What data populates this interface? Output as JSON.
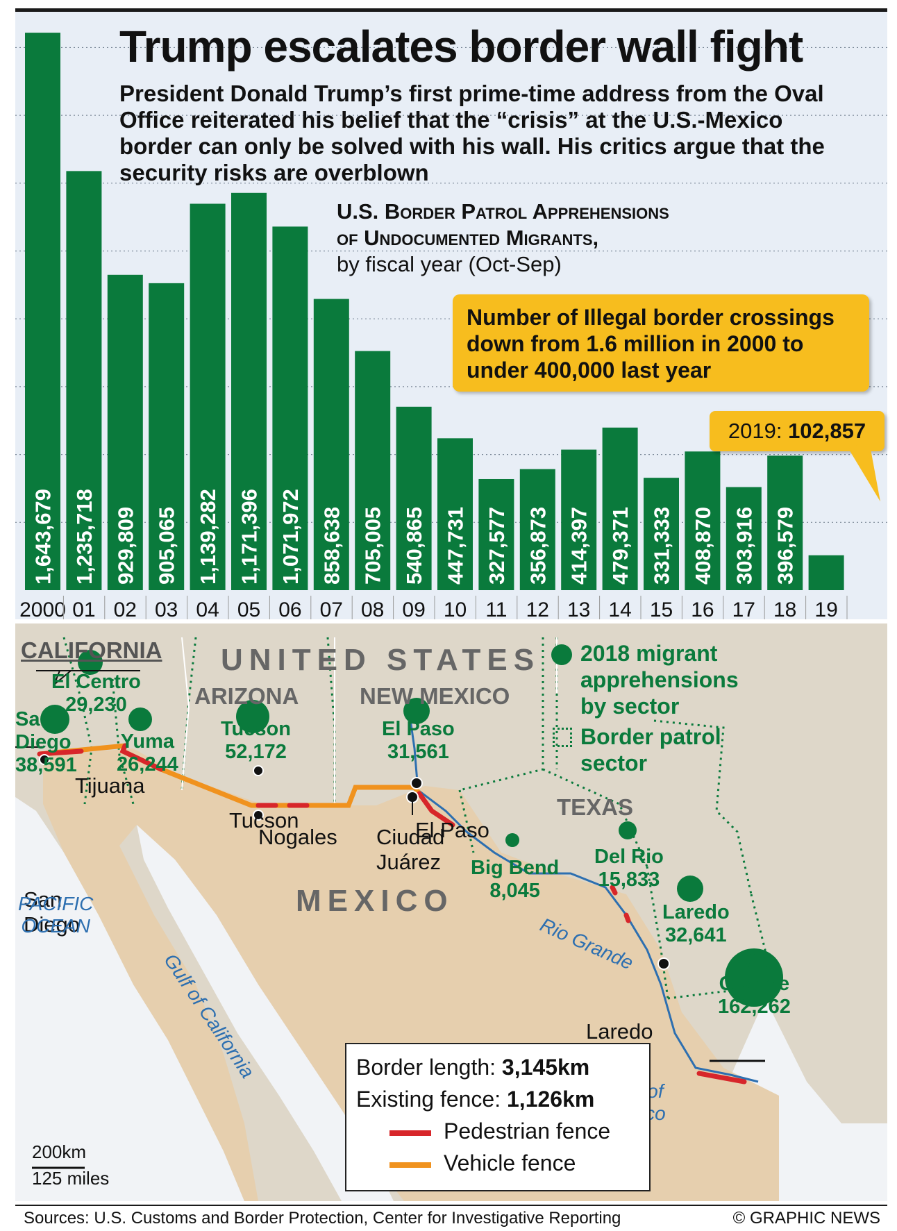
{
  "headline": "Trump escalates border wall fight",
  "intro": "President Donald Trump’s first prime-time address from the Oval Office reiterated his belief that the “crisis” at the U.S.-Mexico border can only be solved with his wall. His critics argue that the security risks are overblown",
  "chart_title": {
    "line1": "U.S. Border Patrol Apprehensions",
    "line2": "of Undocumented Migrants,",
    "line3": "by fiscal year (Oct-Sep)"
  },
  "callout": "Number of Illegal border crossings down from 1.6 million in 2000 to under 400,000 last year",
  "callout_2019": {
    "label": "2019:",
    "value": "102,857"
  },
  "chart_data": {
    "type": "bar",
    "title": "U.S. Border Patrol Apprehensions of Undocumented Migrants, by fiscal year (Oct-Sep)",
    "categories": [
      "2000",
      "01",
      "02",
      "03",
      "04",
      "05",
      "06",
      "07",
      "08",
      "09",
      "10",
      "11",
      "12",
      "13",
      "14",
      "15",
      "16",
      "17",
      "18",
      "19"
    ],
    "values": [
      1643679,
      1235718,
      929809,
      905065,
      1139282,
      1171396,
      1071972,
      858638,
      705005,
      540865,
      447731,
      327577,
      356873,
      414397,
      479371,
      331333,
      408870,
      303916,
      396579,
      102857
    ],
    "value_labels": [
      "1,643,679",
      "1,235,718",
      "929,809",
      "905,065",
      "1,139,282",
      "1,171,396",
      "1,071,972",
      "858,638",
      "705,005",
      "540,865",
      "447,731",
      "327,577",
      "356,873",
      "414,397",
      "479,371",
      "331,333",
      "408,870",
      "303,916",
      "396,579",
      ""
    ],
    "ylim": [
      0,
      1650000
    ],
    "grid": true,
    "colors": {
      "bar": "#0a7a3c",
      "background": "#e8eef6",
      "callout": "#f7bd1e"
    }
  },
  "map": {
    "country_us": "UNITED STATES",
    "country_mx": "MEXICO",
    "states": {
      "california": "CALIFORNIA",
      "arizona": "ARIZONA",
      "new_mexico": "NEW MEXICO",
      "texas": "TEXAS"
    },
    "sectors": {
      "el_centro": {
        "name": "El Centro",
        "value": "29,230"
      },
      "san_diego": {
        "name1": "San",
        "name2": "Diego",
        "value": "38,591"
      },
      "yuma": {
        "name": "Yuma",
        "value": "26,244"
      },
      "tucson": {
        "name": "Tucson",
        "value": "52,172"
      },
      "el_paso": {
        "name": "El Paso",
        "value": "31,561"
      },
      "big_bend": {
        "name": "Big Bend",
        "value": "8,045"
      },
      "del_rio": {
        "name": "Del Rio",
        "value": "15,833"
      },
      "laredo": {
        "name": "Laredo",
        "value": "32,641"
      },
      "rio_grande": {
        "name1": "Rio",
        "name2": "Grande",
        "value": "162,262"
      }
    },
    "cities": {
      "tijuana": "Tijuana",
      "san_diego_1": "San",
      "san_diego_2": "Diego",
      "tucson": "Tucson",
      "nogales": "Nogales",
      "el_paso": "El Paso",
      "ciudad_1": "Ciudad",
      "ciudad_2": "Juárez",
      "laredo": "Laredo"
    },
    "water": {
      "pacific_1": "PACIFIC",
      "pacific_2": "OCEAN",
      "gulf_cal": "Gulf of California",
      "gulf_mex_1": "Gulf of",
      "gulf_mex_2": "Mexico",
      "rio_grande": "Rio Grande"
    },
    "legend": {
      "circle": "2018 migrant apprehensions by sector",
      "sector": "Border patrol sector"
    },
    "info": {
      "border_label": "Border length:",
      "border_value": "3,145km",
      "fence_label": "Existing fence:",
      "fence_value": "1,126km",
      "pedestrian": "Pedestrian fence",
      "vehicle": "Vehicle fence"
    },
    "scale": {
      "km": "200km",
      "miles": "125 miles"
    },
    "colors": {
      "pedestrian": "#d7262a",
      "vehicle": "#f0921e",
      "sector": "#0a7a3c",
      "water": "#2d6fb0"
    }
  },
  "footer": {
    "sources": "Sources: U.S. Customs and Border Protection, Center for Investigative Reporting",
    "credit": "© GRAPHIC NEWS"
  }
}
